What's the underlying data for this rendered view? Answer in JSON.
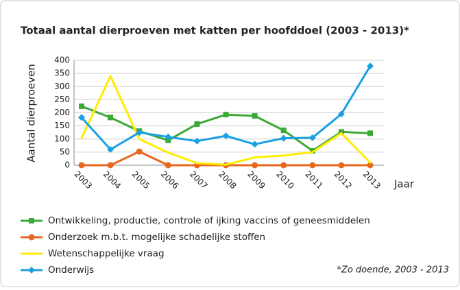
{
  "chart_data": {
    "type": "line",
    "title": "Totaal aantal dierproeven met katten per hoofddoel (2003 - 2013)*",
    "y_label": "Aantal dierproeven",
    "x_label": "Jaar",
    "note": "*Zo doende, 2003 - 2013",
    "categories": [
      "2003",
      "2004",
      "2005",
      "2006",
      "2007",
      "2008",
      "2009",
      "2010",
      "2011",
      "2012",
      "2013"
    ],
    "series": [
      {
        "name": "Ontwikkeling, productie, controle of ijking vaccins of geneesmiddelen",
        "color": "#3aaa35",
        "marker": "square",
        "values": [
          225,
          182,
          130,
          95,
          157,
          193,
          188,
          133,
          55,
          127,
          122
        ]
      },
      {
        "name": "Onderzoek m.b.t. mogelijke schadelijke stoffen",
        "color": "#e8671c",
        "marker": "circle",
        "values": [
          0,
          0,
          52,
          0,
          0,
          0,
          0,
          0,
          0,
          0,
          0
        ]
      },
      {
        "name": "Wetenschappelijke vraag",
        "color": "#ffec00",
        "marker": "none",
        "values": [
          103,
          340,
          100,
          48,
          8,
          2,
          30,
          37,
          50,
          122,
          10
        ]
      },
      {
        "name": "Onderwijs",
        "color": "#1ba0e2",
        "marker": "diamond",
        "values": [
          182,
          60,
          125,
          108,
          92,
          112,
          80,
          103,
          105,
          195,
          378
        ]
      }
    ],
    "ylim": [
      0,
      400
    ],
    "yticks": [
      0,
      50,
      100,
      150,
      200,
      250,
      300,
      350,
      400
    ],
    "grid": true
  }
}
